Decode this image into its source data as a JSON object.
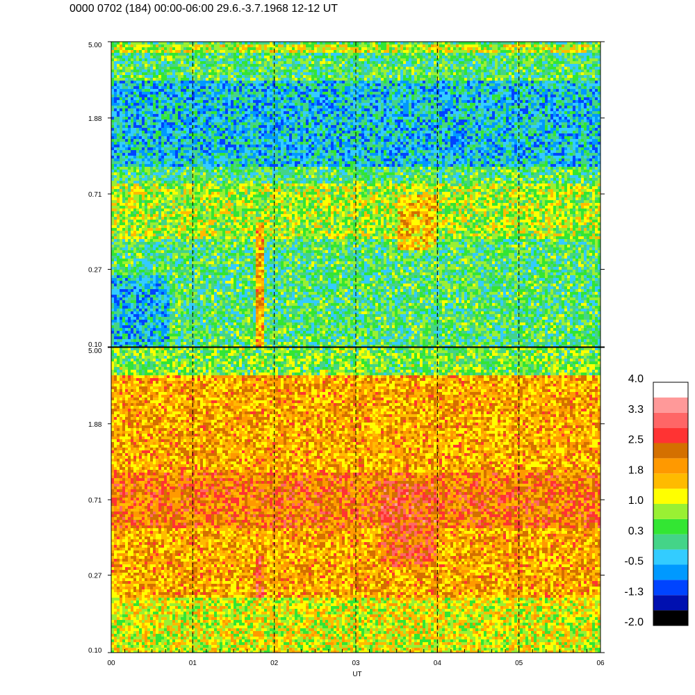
{
  "title": "0000 0702 (184) 00:00-06:00 29.6.-3.7.1968  12-12 UT",
  "chart_data": {
    "type": "heatmap",
    "panels": [
      {
        "name": "upper-spectrogram",
        "y_ticks": [
          "5.00",
          "1.88",
          "0.71",
          "0.27",
          "0.10"
        ],
        "ylim": [
          0.1,
          5.0
        ],
        "yscale": "log",
        "background_level": 0.3,
        "features": [
          {
            "kind": "band",
            "y": 4.6,
            "level": 1.0
          },
          {
            "kind": "region",
            "x": [
              0.0,
              6.0
            ],
            "y": [
              1.0,
              3.0
            ],
            "level": -0.5
          },
          {
            "kind": "region",
            "x": [
              0.0,
              6.0
            ],
            "y": [
              0.4,
              0.8
            ],
            "level": 1.0
          },
          {
            "kind": "region",
            "x": [
              0.0,
              0.7
            ],
            "y": [
              0.1,
              0.25
            ],
            "level": -0.5
          },
          {
            "kind": "region",
            "x": [
              3.5,
              4.0
            ],
            "y": [
              0.35,
              0.7
            ],
            "level": 1.8
          },
          {
            "kind": "column",
            "x": 1.82,
            "y": [
              0.1,
              0.5
            ],
            "level": 1.8
          }
        ]
      },
      {
        "name": "lower-spectrogram",
        "y_ticks": [
          "5.00",
          "1.88",
          "0.71",
          "0.27",
          "0.10"
        ],
        "ylim": [
          0.1,
          5.0
        ],
        "yscale": "log",
        "background_level": 1.8,
        "features": [
          {
            "kind": "region",
            "x": [
              0.0,
              6.0
            ],
            "y": [
              3.5,
              5.0
            ],
            "level": 0.3
          },
          {
            "kind": "region",
            "x": [
              0.0,
              6.0
            ],
            "y": [
              0.5,
              1.0
            ],
            "level": 2.3
          },
          {
            "kind": "region",
            "x": [
              3.3,
              4.0
            ],
            "y": [
              0.3,
              0.9
            ],
            "level": 2.6
          },
          {
            "kind": "column",
            "x": 1.82,
            "y": [
              0.1,
              0.35
            ],
            "level": 2.6
          },
          {
            "kind": "region",
            "x": [
              0.0,
              6.0
            ],
            "y": [
              0.1,
              0.2
            ],
            "level": 1.0
          }
        ]
      }
    ],
    "x_ticks": [
      "00",
      "01",
      "02",
      "03",
      "04",
      "05",
      "06"
    ],
    "xlim": [
      0,
      6
    ],
    "xlabel": "UT",
    "dashed_gridlines_x": [
      1,
      2,
      3,
      4,
      5
    ],
    "colorbar": {
      "labels": [
        "4.0",
        "3.3",
        "2.5",
        "1.8",
        "1.0",
        "0.3",
        "-0.5",
        "-1.3",
        "-2.0"
      ],
      "range": [
        -2.0,
        4.0
      ],
      "colors": [
        "#000000",
        "#0010b0",
        "#0044ff",
        "#0099ff",
        "#33ccff",
        "#44d488",
        "#33e633",
        "#99f033",
        "#ffff00",
        "#ffbb00",
        "#ff9900",
        "#d47000",
        "#ff3333",
        "#ff6666",
        "#ff9999",
        "#ffffff"
      ]
    }
  }
}
